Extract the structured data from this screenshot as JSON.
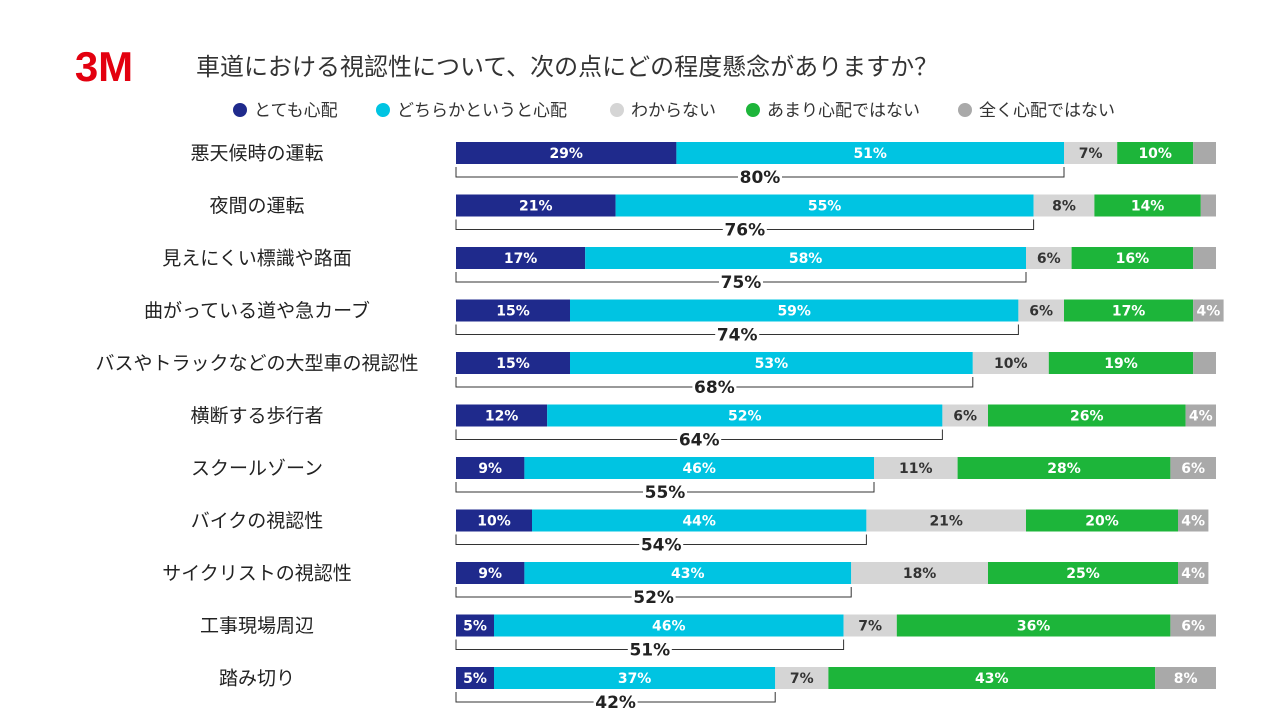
{
  "logo": "3M",
  "chart_data": {
    "type": "stacked-bar-horizontal",
    "title": "車道における視認性について、次の点にどの程度懸念がありますか？",
    "categories": [
      "悪天候時の運転",
      "夜間の運転",
      "見えにくい標識や路面",
      "曲がっている道や急カーブ",
      "バスやトラックなどの大型車の視認性",
      "横断する歩行者",
      "スクールゾーン",
      "バイクの視認性",
      "サイクリストの視認性",
      "工事現場周辺",
      "踏み切り"
    ],
    "xlim": [
      0,
      100
    ],
    "series": [
      {
        "name": "とても心配",
        "color": "#1f2a8c",
        "values": [
          29,
          21,
          17,
          15,
          15,
          12,
          9,
          10,
          9,
          5,
          5
        ],
        "value_labels": [
          "29%",
          "21%",
          "17%",
          "15%",
          "15%",
          "12%",
          "9%",
          "10%",
          "9%",
          "5%",
          "5%"
        ]
      },
      {
        "name": "どちらかというと心配",
        "color": "#00c4e2",
        "values": [
          51,
          55,
          58,
          59,
          53,
          52,
          46,
          44,
          43,
          46,
          37
        ],
        "value_labels": [
          "51%",
          "55%",
          "58%",
          "59%",
          "53%",
          "52%",
          "46%",
          "44%",
          "43%",
          "46%",
          "37%"
        ]
      },
      {
        "name": "わからない",
        "color": "#d5d5d5",
        "values": [
          7,
          8,
          6,
          6,
          10,
          6,
          11,
          21,
          18,
          7,
          7
        ],
        "value_labels": [
          "7%",
          "8%",
          "6%",
          "6%",
          "10%",
          "6%",
          "11%",
          "21%",
          "18%",
          "7%",
          "7%"
        ]
      },
      {
        "name": "あまり心配ではない",
        "color": "#1db53a",
        "values": [
          10,
          14,
          16,
          17,
          19,
          26,
          28,
          20,
          25,
          36,
          43
        ],
        "value_labels": [
          "10%",
          "14%",
          "16%",
          "17%",
          "19%",
          "26%",
          "28%",
          "20%",
          "25%",
          "36%",
          "43%"
        ]
      },
      {
        "name": "全く心配ではない",
        "color": "#a9a9a9",
        "values": [
          3,
          2,
          3,
          4,
          3,
          4,
          6,
          4,
          4,
          6,
          8
        ],
        "value_labels": [
          null,
          null,
          null,
          "4%",
          null,
          "4%",
          "6%",
          "4%",
          "4%",
          "6%",
          "8%"
        ]
      }
    ],
    "totals": {
      "values": [
        80,
        76,
        75,
        74,
        68,
        64,
        55,
        54,
        52,
        51,
        42
      ],
      "value_labels": [
        "80%",
        "76%",
        "75%",
        "74%",
        "68%",
        "64%",
        "55%",
        "54%",
        "52%",
        "51%",
        "42%"
      ]
    }
  }
}
